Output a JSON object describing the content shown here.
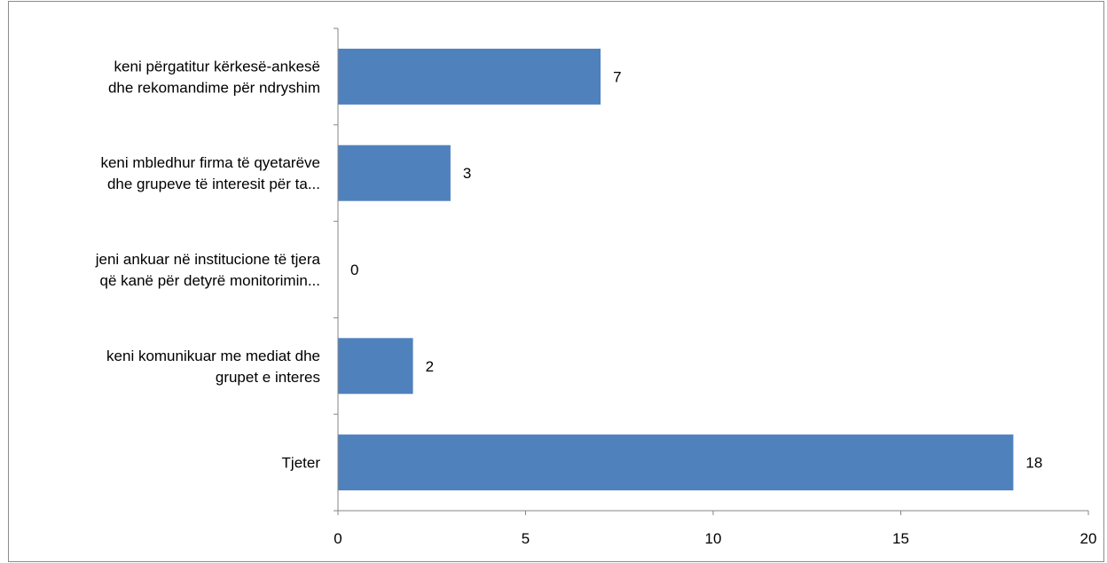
{
  "chart_data": {
    "type": "bar",
    "orientation": "horizontal",
    "categories": [
      [
        "keni përgatitur kërkesë-ankesë",
        "dhe rekomandime për ndryshim"
      ],
      [
        "keni mbledhur firma të qyetarëve",
        "dhe grupeve të interesit për ta..."
      ],
      [
        "jeni ankuar në institucione të tjera",
        "që kanë për detyrë monitorimin..."
      ],
      [
        "keni komunikuar me mediat dhe",
        "grupet e interes"
      ],
      [
        "Tjeter"
      ]
    ],
    "values": [
      7,
      3,
      0,
      2,
      18
    ],
    "xlim": [
      0,
      20
    ],
    "xticks": [
      0,
      5,
      10,
      15,
      20
    ],
    "bar_color": "#4f81bd",
    "grid": false,
    "legend": "none",
    "data_labels": true
  }
}
